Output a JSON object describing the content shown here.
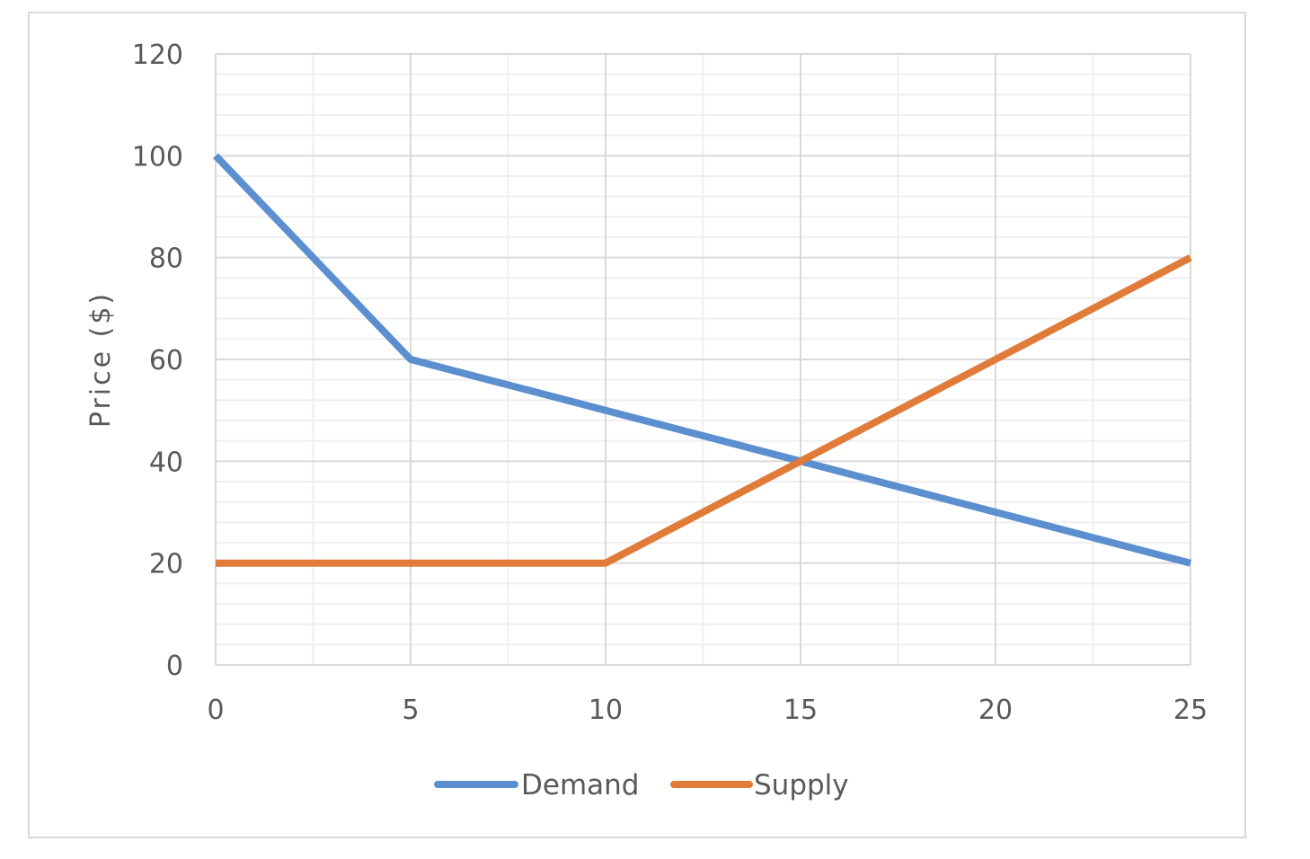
{
  "chart_data": {
    "type": "line",
    "title": "",
    "xlabel": "",
    "ylabel": "Price ($)",
    "xlim": [
      0,
      25
    ],
    "ylim": [
      0,
      120
    ],
    "x_ticks": [
      0,
      5,
      10,
      15,
      20,
      25
    ],
    "y_ticks": [
      0,
      20,
      40,
      60,
      80,
      100,
      120
    ],
    "grid": true,
    "legend_position": "bottom",
    "series": [
      {
        "name": "Demand",
        "color": "#5b8fd0",
        "points": [
          [
            0,
            100
          ],
          [
            5,
            60
          ],
          [
            10,
            50
          ],
          [
            15,
            40
          ],
          [
            20,
            30
          ],
          [
            25,
            20
          ]
        ]
      },
      {
        "name": "Supply",
        "color": "#e07b39",
        "points": [
          [
            0,
            20
          ],
          [
            5,
            20
          ],
          [
            10,
            20
          ],
          [
            15,
            40
          ],
          [
            20,
            60
          ],
          [
            25,
            80
          ]
        ]
      }
    ]
  }
}
